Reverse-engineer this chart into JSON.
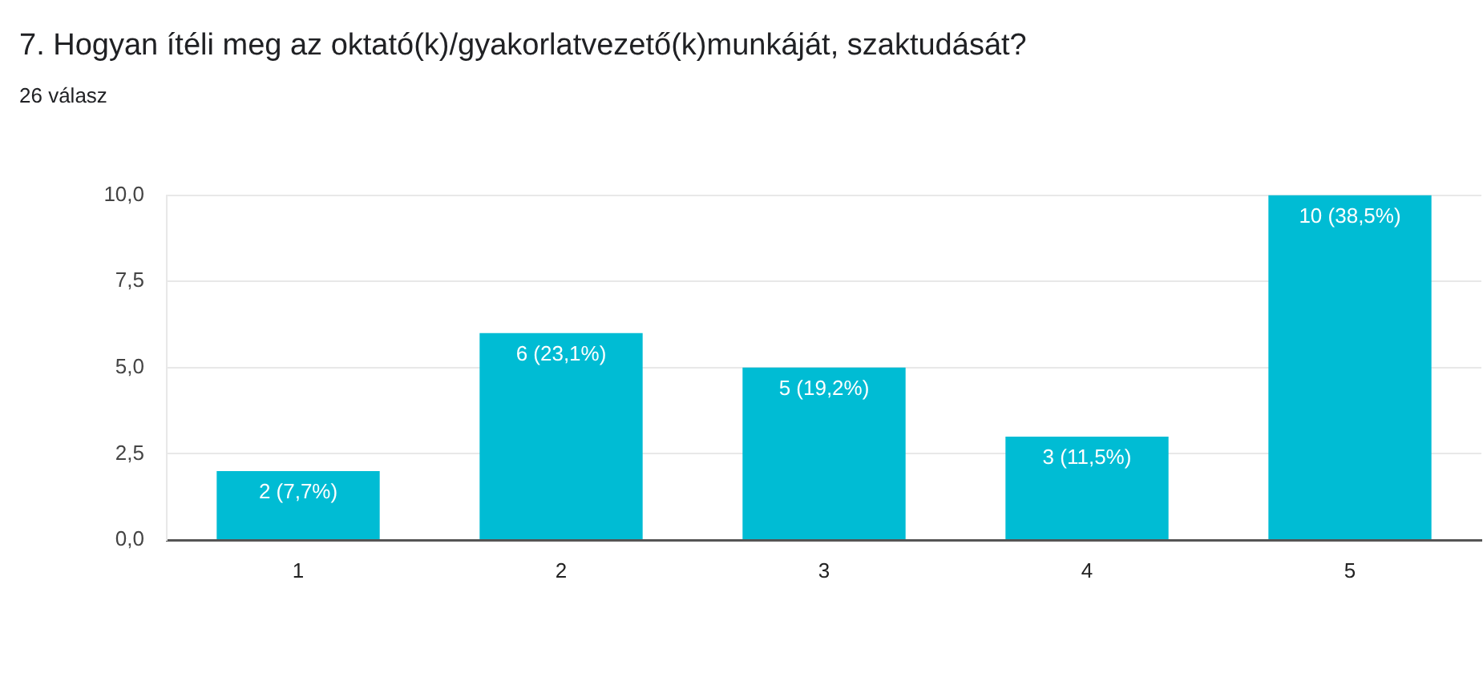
{
  "chart_data": {
    "type": "bar",
    "title": "7. Hogyan ítéli meg az oktató(k)/gyakorlatvezető(k)munkáját, szaktudását?",
    "subtitle": "26 válasz",
    "categories": [
      "1",
      "2",
      "3",
      "4",
      "5"
    ],
    "values": [
      2,
      6,
      5,
      3,
      10
    ],
    "color": "#00bcd4",
    "value_labels": [
      "2 (7,7%)",
      "6 (23,1%)",
      "5 (19,2%)",
      "3 (11,5%)",
      "10 (38,5%)"
    ],
    "ylim": [
      0,
      10
    ],
    "yticks": [
      {
        "value": 0,
        "label": "0,0"
      },
      {
        "value": 2.5,
        "label": "2,5"
      },
      {
        "value": 5,
        "label": "5,0"
      },
      {
        "value": 7.5,
        "label": "7,5"
      },
      {
        "value": 10,
        "label": "10,0"
      }
    ],
    "grid": "y",
    "legend": false
  }
}
